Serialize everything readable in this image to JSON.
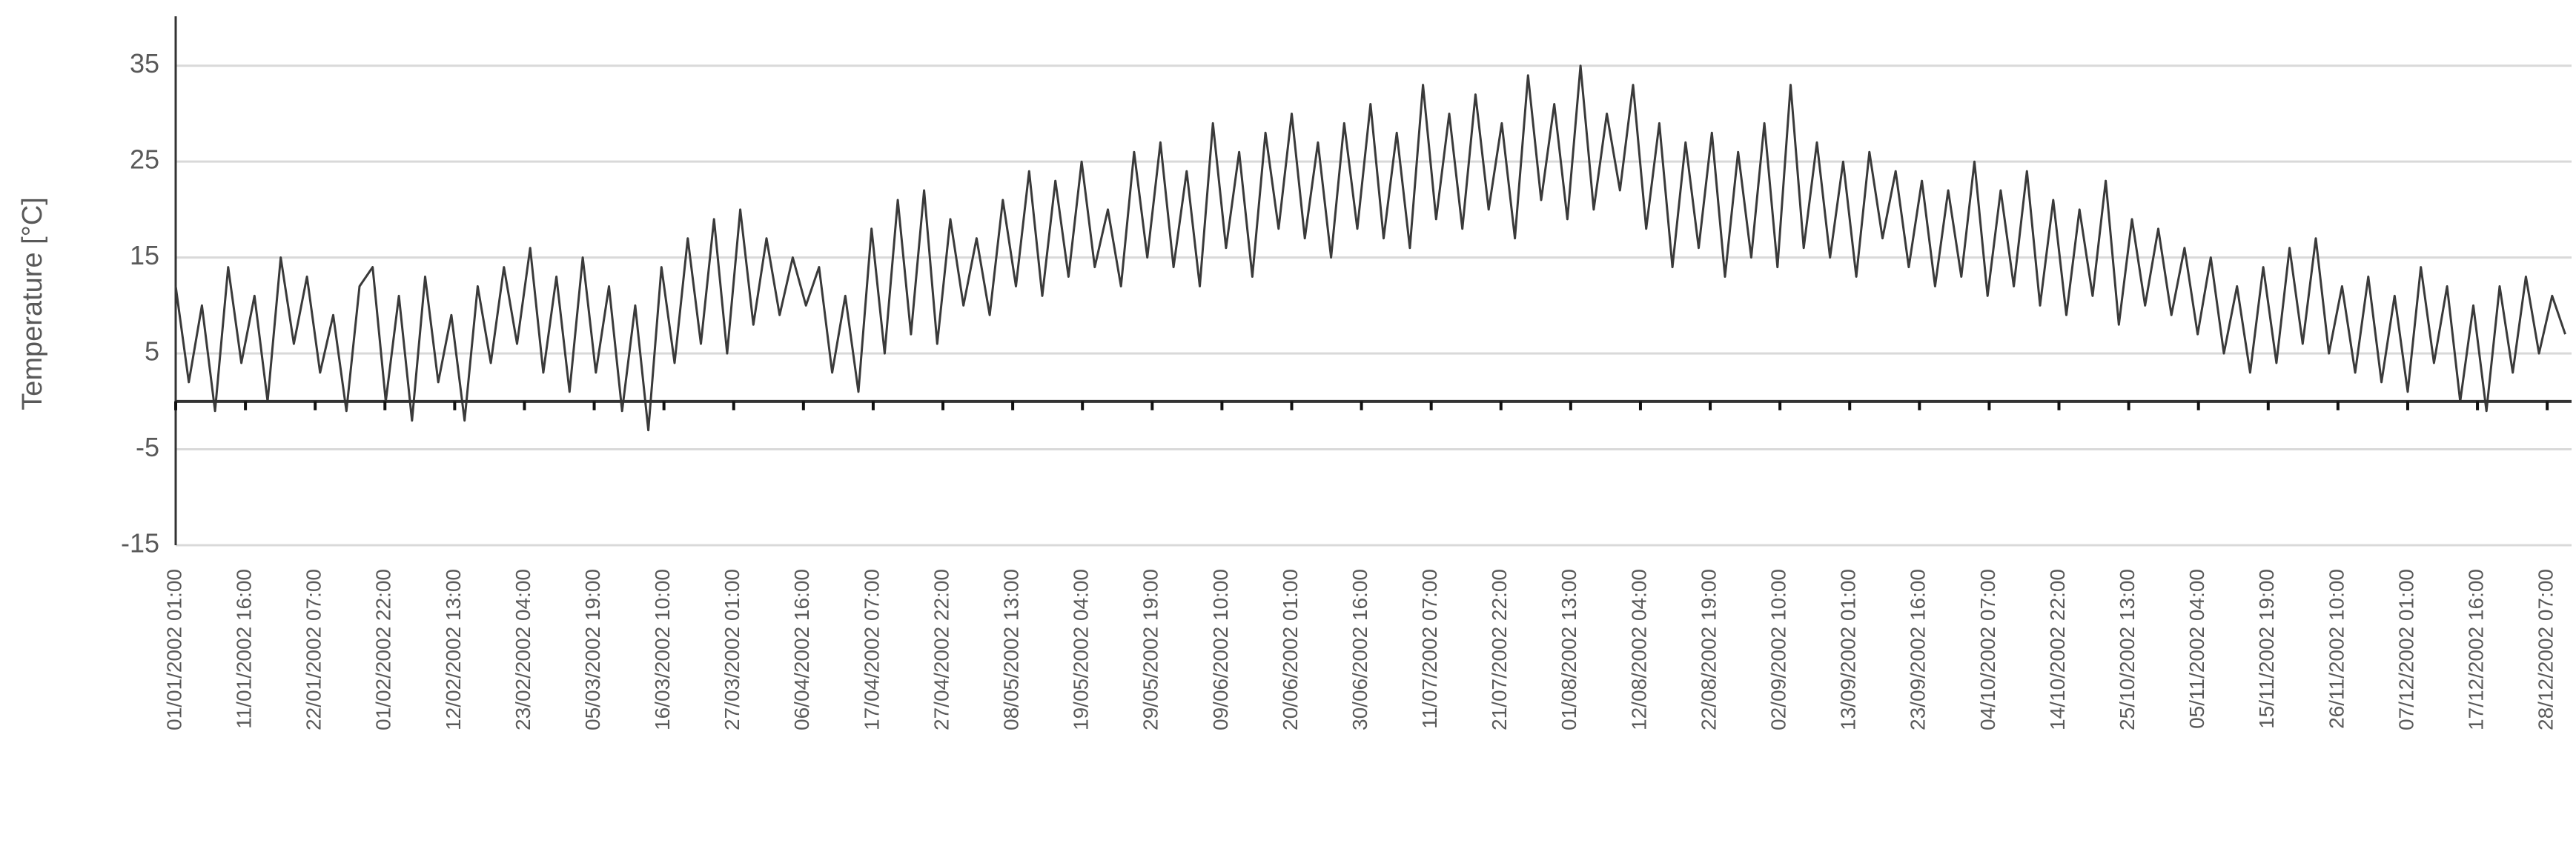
{
  "chart_data": {
    "type": "line",
    "y_label": "Temperature [°C]",
    "x": [
      0,
      48,
      96,
      144,
      192,
      240,
      288,
      336,
      384,
      432,
      480,
      528,
      576,
      624,
      672,
      720,
      768,
      816,
      864,
      912,
      960,
      1008,
      1056,
      1104,
      1152,
      1200,
      1248,
      1296,
      1344,
      1392,
      1440,
      1488,
      1536,
      1584,
      1632,
      1680,
      1728,
      1776,
      1824,
      1872,
      1920,
      1968,
      2016,
      2064,
      2112,
      2160,
      2208,
      2256,
      2304,
      2352,
      2400,
      2448,
      2496,
      2544,
      2592,
      2640,
      2688,
      2736,
      2784,
      2832,
      2880,
      2928,
      2976,
      3024,
      3072,
      3120,
      3168,
      3216,
      3264,
      3312,
      3360,
      3408,
      3456,
      3504,
      3552,
      3600,
      3648,
      3696,
      3744,
      3792,
      3840,
      3888,
      3936,
      3984,
      4032,
      4080,
      4128,
      4176,
      4224,
      4272,
      4320,
      4368,
      4416,
      4464,
      4512,
      4560,
      4608,
      4656,
      4704,
      4752,
      4800,
      4848,
      4896,
      4944,
      4992,
      5040,
      5088,
      5136,
      5184,
      5232,
      5280,
      5328,
      5376,
      5424,
      5472,
      5520,
      5568,
      5616,
      5664,
      5712,
      5760,
      5808,
      5856,
      5904,
      5952,
      6000,
      6048,
      6096,
      6144,
      6192,
      6240,
      6288,
      6336,
      6384,
      6432,
      6480,
      6528,
      6576,
      6624,
      6672,
      6720,
      6768,
      6816,
      6864,
      6912,
      6960,
      7008,
      7056,
      7104,
      7152,
      7200,
      7248,
      7296,
      7344,
      7392,
      7440,
      7488,
      7536,
      7584,
      7632,
      7680,
      7728,
      7776,
      7824,
      7872,
      7920,
      7968,
      8016,
      8064,
      8112,
      8160,
      8208,
      8256,
      8304,
      8352,
      8400,
      8448,
      8496,
      8544,
      8592,
      8640,
      8688,
      8736
    ],
    "series": [
      {
        "color": "#3a3a3a",
        "values": [
          12,
          2,
          10,
          -1,
          14,
          4,
          11,
          0,
          15,
          6,
          13,
          3,
          9,
          -1,
          12,
          14,
          0,
          11,
          -2,
          13,
          2,
          9,
          -2,
          12,
          4,
          14,
          6,
          16,
          3,
          13,
          1,
          15,
          3,
          12,
          -1,
          10,
          -3,
          14,
          4,
          17,
          6,
          19,
          5,
          20,
          8,
          17,
          9,
          15,
          10,
          14,
          3,
          11,
          1,
          18,
          5,
          21,
          7,
          22,
          6,
          19,
          10,
          17,
          9,
          21,
          12,
          24,
          11,
          23,
          13,
          25,
          14,
          20,
          12,
          26,
          15,
          27,
          14,
          24,
          12,
          29,
          16,
          26,
          13,
          28,
          18,
          30,
          17,
          27,
          15,
          29,
          18,
          31,
          17,
          28,
          16,
          33,
          19,
          30,
          18,
          32,
          20,
          29,
          17,
          34,
          21,
          31,
          19,
          35,
          20,
          30,
          22,
          33,
          18,
          29,
          14,
          27,
          16,
          28,
          13,
          26,
          15,
          29,
          14,
          33,
          16,
          27,
          15,
          25,
          13,
          26,
          17,
          24,
          14,
          23,
          12,
          22,
          13,
          25,
          11,
          22,
          12,
          24,
          10,
          21,
          9,
          20,
          11,
          23,
          8,
          19,
          10,
          18,
          9,
          16,
          7,
          15,
          5,
          12,
          3,
          14,
          4,
          16,
          6,
          17,
          5,
          12,
          3,
          13,
          2,
          11,
          1,
          14,
          4,
          12,
          0,
          10,
          -1,
          12,
          3,
          13,
          5,
          11,
          7
        ]
      }
    ],
    "xlim": [
      0,
      8759
    ],
    "xticks": [
      {
        "value": 0,
        "label": "01/01/2002 01:00"
      },
      {
        "value": 255,
        "label": "11/01/2002 16:00"
      },
      {
        "value": 510,
        "label": "22/01/2002 07:00"
      },
      {
        "value": 765,
        "label": "01/02/2002 22:00"
      },
      {
        "value": 1020,
        "label": "12/02/2002 13:00"
      },
      {
        "value": 1275,
        "label": "23/02/2002 04:00"
      },
      {
        "value": 1530,
        "label": "05/03/2002 19:00"
      },
      {
        "value": 1785,
        "label": "16/03/2002 10:00"
      },
      {
        "value": 2040,
        "label": "27/03/2002 01:00"
      },
      {
        "value": 2295,
        "label": "06/04/2002 16:00"
      },
      {
        "value": 2550,
        "label": "17/04/2002 07:00"
      },
      {
        "value": 2805,
        "label": "27/04/2002 22:00"
      },
      {
        "value": 3060,
        "label": "08/05/2002 13:00"
      },
      {
        "value": 3315,
        "label": "19/05/2002 04:00"
      },
      {
        "value": 3570,
        "label": "29/05/2002 19:00"
      },
      {
        "value": 3825,
        "label": "09/06/2002 10:00"
      },
      {
        "value": 4080,
        "label": "20/06/2002 01:00"
      },
      {
        "value": 4335,
        "label": "30/06/2002 16:00"
      },
      {
        "value": 4590,
        "label": "11/07/2002 07:00"
      },
      {
        "value": 4845,
        "label": "21/07/2002 22:00"
      },
      {
        "value": 5100,
        "label": "01/08/2002 13:00"
      },
      {
        "value": 5355,
        "label": "12/08/2002 04:00"
      },
      {
        "value": 5610,
        "label": "22/08/2002 19:00"
      },
      {
        "value": 5865,
        "label": "02/09/2002 10:00"
      },
      {
        "value": 6120,
        "label": "13/09/2002 01:00"
      },
      {
        "value": 6375,
        "label": "23/09/2002 16:00"
      },
      {
        "value": 6630,
        "label": "04/10/2002 07:00"
      },
      {
        "value": 6885,
        "label": "14/10/2002 22:00"
      },
      {
        "value": 7140,
        "label": "25/10/2002 13:00"
      },
      {
        "value": 7395,
        "label": "05/11/2002 04:00"
      },
      {
        "value": 7650,
        "label": "15/11/2002 19:00"
      },
      {
        "value": 7905,
        "label": "26/11/2002 10:00"
      },
      {
        "value": 8160,
        "label": "07/12/2002 01:00"
      },
      {
        "value": 8415,
        "label": "17/12/2002 16:00"
      },
      {
        "value": 8670,
        "label": "28/12/2002 07:00"
      }
    ],
    "ylim": [
      -15,
      40
    ],
    "yticks": [
      -15,
      -5,
      5,
      15,
      25,
      35
    ],
    "grid": true
  }
}
